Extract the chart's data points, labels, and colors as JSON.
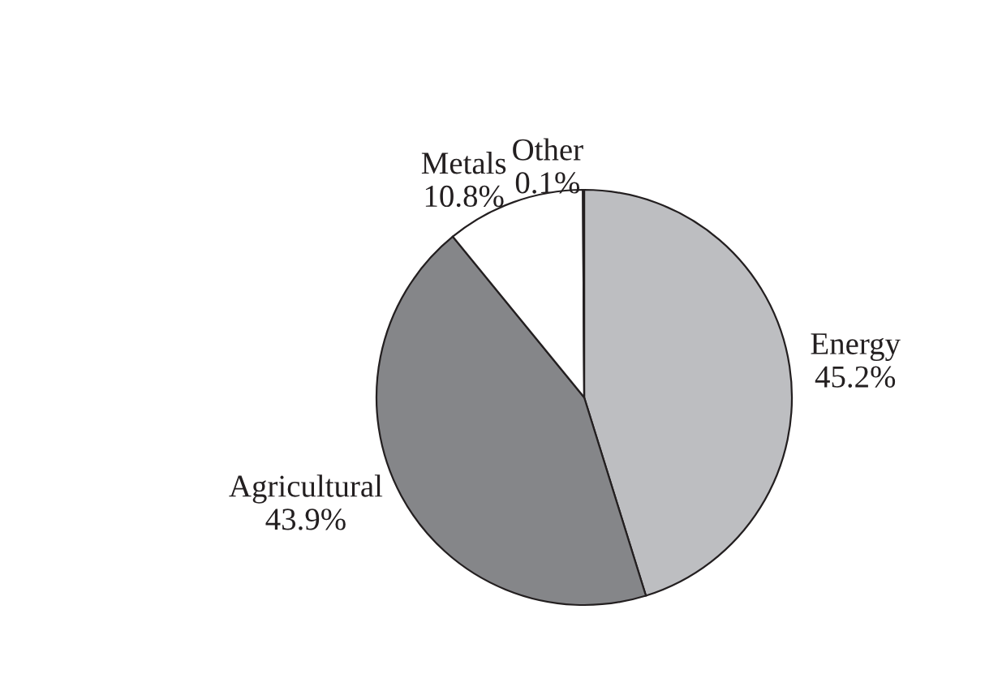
{
  "chart_data": {
    "type": "pie",
    "categories": [
      "Energy",
      "Agricultural",
      "Metals",
      "Other"
    ],
    "values": [
      45.2,
      43.9,
      10.8,
      0.1
    ],
    "value_labels": [
      "45.2%",
      "43.9%",
      "10.8%",
      "0.1%"
    ],
    "colors": [
      "#bdbec1",
      "#858689",
      "#ffffff",
      "#ffffff"
    ],
    "legend": false
  }
}
